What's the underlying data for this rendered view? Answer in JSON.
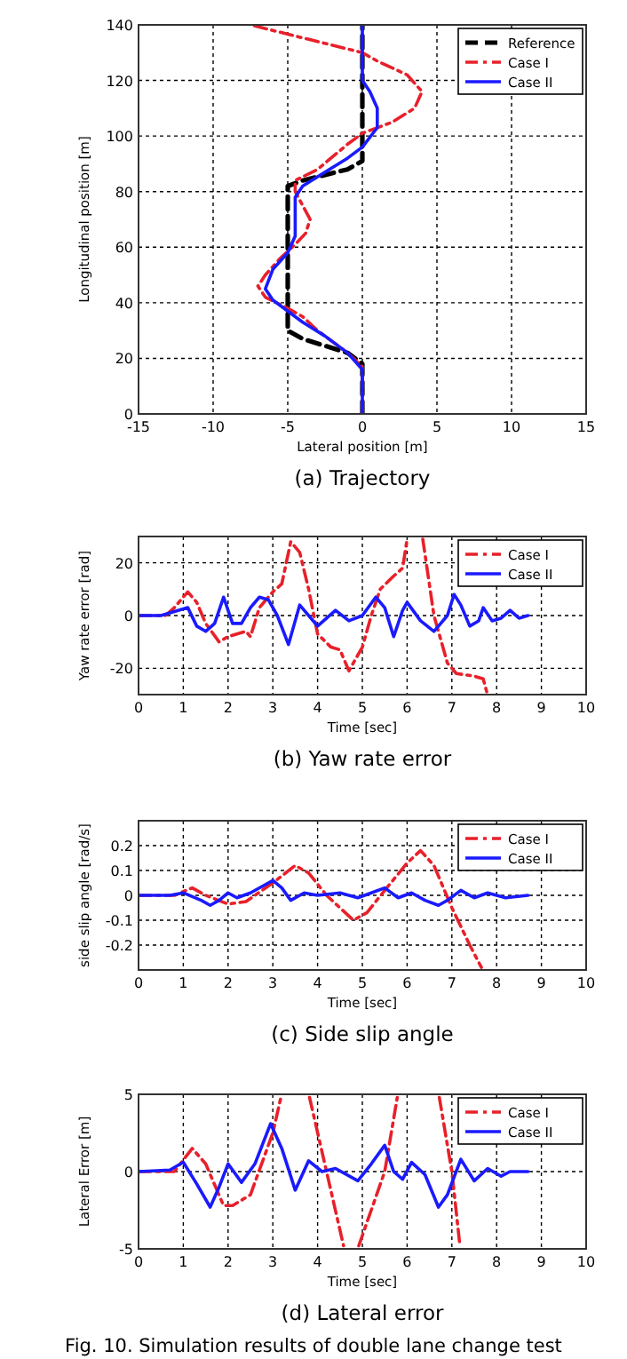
{
  "chart_data": [
    {
      "type": "line",
      "xlabel": "Lateral position [m]",
      "ylabel": "Longitudinal position [m]",
      "annotations": [
        "(a)  Trajectory"
      ],
      "xlim": [
        -15,
        15
      ],
      "xticks": [
        -15,
        -10,
        -5,
        0,
        5,
        10,
        15
      ],
      "ylim": [
        0,
        140
      ],
      "yticks": [
        0,
        20,
        40,
        60,
        80,
        100,
        120,
        140
      ],
      "grid": true,
      "legend": "top right",
      "series": [
        {
          "name": "Reference",
          "color": "#000000",
          "line_style": "dashed",
          "x": [
            0,
            0,
            -1,
            -4,
            -5,
            -5,
            -4,
            -1,
            0,
            0
          ],
          "values": [
            0,
            18,
            22,
            27,
            30,
            82,
            84,
            88,
            91,
            140
          ]
        },
        {
          "name": "Case I",
          "color": "#e8202a",
          "line_style": "dashed",
          "x": [
            0,
            0,
            -1,
            -2,
            -3,
            -4,
            -5,
            -6.5,
            -7,
            -6.5,
            -5.5,
            -4.5,
            -3.8,
            -3.5,
            -4,
            -4.5,
            -4.5,
            -3,
            -1,
            0,
            2,
            3.5,
            4,
            3,
            1,
            0,
            -3,
            -6,
            -7.5
          ],
          "values": [
            0,
            17,
            22,
            26,
            30,
            35,
            38,
            42,
            46,
            50,
            56,
            61,
            65,
            70,
            75,
            80,
            84,
            88,
            97,
            101,
            105,
            110,
            116,
            122,
            127,
            130,
            134,
            138,
            140
          ]
        },
        {
          "name": "Case II",
          "color": "#1a1aff",
          "line_style": "solid",
          "x": [
            0,
            0,
            -1,
            -2.5,
            -4,
            -5,
            -6,
            -6.5,
            -6,
            -5,
            -4.5,
            -4.5,
            -4.5,
            -4,
            -2.5,
            -1,
            0,
            1,
            1,
            0.5,
            0,
            0,
            0,
            0
          ],
          "values": [
            0,
            16,
            22,
            28,
            33,
            37,
            41,
            45,
            52,
            58,
            64,
            72,
            78,
            82,
            87,
            92,
            96,
            103,
            110,
            116,
            120,
            125,
            130,
            140
          ]
        }
      ]
    },
    {
      "type": "line",
      "xlabel": "Time [sec]",
      "ylabel": "Yaw rate error  [rad]",
      "annotations": [
        "(b)  Yaw rate error"
      ],
      "xlim": [
        0,
        10
      ],
      "xticks": [
        0,
        1,
        2,
        3,
        4,
        5,
        6,
        7,
        8,
        9,
        10
      ],
      "ylim": [
        -30,
        30
      ],
      "yticks": [
        -20,
        0,
        20
      ],
      "grid": true,
      "legend": "top right",
      "series": [
        {
          "name": "Case I",
          "color": "#e8202a",
          "line_style": "dashed",
          "x": [
            0,
            0.6,
            0.8,
            1.1,
            1.3,
            1.5,
            1.8,
            2.0,
            2.4,
            2.5,
            2.7,
            3.0,
            3.2,
            3.4,
            3.6,
            3.8,
            4.0,
            4.3,
            4.5,
            4.7,
            5.0,
            5.2,
            5.4,
            5.7,
            5.9,
            6.0,
            6.15,
            6.35,
            6.6,
            6.9,
            7.1,
            7.5,
            7.7,
            7.78
          ],
          "values": [
            0,
            0,
            3,
            9,
            5,
            -3,
            -10,
            -8,
            -6,
            -8,
            3,
            9,
            12,
            28,
            24,
            10,
            -7,
            -12,
            -13,
            -21,
            -12,
            0,
            10,
            15,
            18,
            29,
            null,
            29,
            0,
            -18,
            -22,
            -23,
            -24,
            -29
          ]
        },
        {
          "name": "Case II",
          "color": "#1a1aff",
          "line_style": "solid",
          "x": [
            0,
            0.5,
            0.9,
            1.1,
            1.3,
            1.5,
            1.7,
            1.9,
            2.1,
            2.3,
            2.5,
            2.7,
            2.9,
            3.1,
            3.35,
            3.6,
            3.8,
            4.0,
            4.4,
            4.7,
            5.0,
            5.3,
            5.5,
            5.7,
            5.9,
            6.0,
            6.3,
            6.6,
            6.9,
            7.05,
            7.2,
            7.4,
            7.6,
            7.7,
            7.9,
            8.1,
            8.3,
            8.5,
            8.7
          ],
          "values": [
            0,
            0,
            2,
            3,
            -4,
            -6,
            -3,
            7,
            -3,
            -3,
            3,
            7,
            6,
            0,
            -11,
            4,
            0,
            -4,
            2,
            -2,
            0,
            7,
            3,
            -8,
            2,
            5,
            -2,
            -6,
            0,
            8,
            4,
            -4,
            -2,
            3,
            -2,
            -1,
            2,
            -1,
            0
          ]
        }
      ]
    },
    {
      "type": "line",
      "xlabel": "Time [sec]",
      "ylabel": "side slip angle [rad/s]",
      "annotations": [
        "(c)  Side slip angle"
      ],
      "xlim": [
        0,
        10
      ],
      "xticks": [
        0,
        1,
        2,
        3,
        4,
        5,
        6,
        7,
        8,
        9,
        10
      ],
      "ylim": [
        -0.3,
        0.3
      ],
      "yticks": [
        -0.2,
        -0.1,
        0,
        0.1,
        0.2
      ],
      "grid": true,
      "legend": "top right",
      "series": [
        {
          "name": "Case I",
          "color": "#e8202a",
          "line_style": "dashed",
          "x": [
            0,
            0.8,
            1.2,
            1.5,
            2.0,
            2.4,
            3.0,
            3.5,
            3.8,
            4.2,
            4.8,
            5.1,
            5.5,
            6.0,
            6.3,
            6.6,
            7.0,
            7.4,
            7.66
          ],
          "values": [
            0,
            0,
            0.03,
            0,
            -0.035,
            -0.025,
            0.05,
            0.12,
            0.09,
            0,
            -0.1,
            -0.07,
            0.02,
            0.13,
            0.18,
            0.12,
            -0.05,
            -0.2,
            -0.29
          ]
        },
        {
          "name": "Case II",
          "color": "#1a1aff",
          "line_style": "solid",
          "x": [
            0,
            0.7,
            1.0,
            1.4,
            1.6,
            1.8,
            2.0,
            2.2,
            2.5,
            3.0,
            3.2,
            3.4,
            3.7,
            4.0,
            4.5,
            4.9,
            5.2,
            5.5,
            5.8,
            6.1,
            6.4,
            6.7,
            6.9,
            7.2,
            7.5,
            7.8,
            8.2,
            8.7
          ],
          "values": [
            0,
            0,
            0.01,
            -0.02,
            -0.04,
            -0.02,
            0.01,
            -0.01,
            0.01,
            0.06,
            0.03,
            -0.02,
            0.01,
            0,
            0.01,
            -0.01,
            0.01,
            0.03,
            -0.01,
            0.01,
            -0.02,
            -0.04,
            -0.02,
            0.02,
            -0.01,
            0.01,
            -0.01,
            0
          ]
        }
      ]
    },
    {
      "type": "line",
      "xlabel": "Time [sec]",
      "ylabel": "Lateral Error [m]",
      "annotations": [
        "(d)  Lateral error",
        "Fig. 10. Simulation results of double lane change test"
      ],
      "xlim": [
        0,
        10
      ],
      "xticks": [
        0,
        1,
        2,
        3,
        4,
        5,
        6,
        7,
        8,
        9,
        10
      ],
      "ylim": [
        -5,
        5
      ],
      "yticks": [
        -5,
        0,
        5
      ],
      "grid": true,
      "legend": "top right",
      "series": [
        {
          "name": "Case I",
          "color": "#e8202a",
          "line_style": "dashed",
          "x": [
            0,
            0.8,
            1.2,
            1.5,
            1.9,
            2.1,
            2.5,
            3.0,
            3.18,
            3.5,
            3.82,
            4.2,
            4.58,
            4.75,
            4.92,
            5.5,
            5.78,
            6.25,
            6.72,
            7.0,
            7.18
          ],
          "values": [
            0,
            0,
            1.5,
            0.5,
            -2.2,
            -2.2,
            -1.5,
            2.5,
            4.8,
            null,
            4.8,
            0,
            -4.8,
            null,
            -4.8,
            0,
            4.8,
            null,
            4.8,
            0,
            -4.8
          ]
        },
        {
          "name": "Case II",
          "color": "#1a1aff",
          "line_style": "solid",
          "x": [
            0,
            0.7,
            1.0,
            1.3,
            1.6,
            1.8,
            2.0,
            2.3,
            2.6,
            2.95,
            3.2,
            3.5,
            3.8,
            4.1,
            4.4,
            4.9,
            5.2,
            5.5,
            5.7,
            5.9,
            6.1,
            6.4,
            6.7,
            6.9,
            7.2,
            7.5,
            7.8,
            8.1,
            8.3,
            8.7
          ],
          "values": [
            0,
            0.1,
            0.6,
            -0.8,
            -2.3,
            -1,
            0.5,
            -0.7,
            0.5,
            3.1,
            1.5,
            -1.2,
            0.7,
            0,
            0.2,
            -0.6,
            0.5,
            1.7,
            0,
            -0.5,
            0.6,
            -0.2,
            -2.3,
            -1.5,
            0.8,
            -0.6,
            0.2,
            -0.3,
            0,
            0
          ]
        }
      ]
    }
  ]
}
